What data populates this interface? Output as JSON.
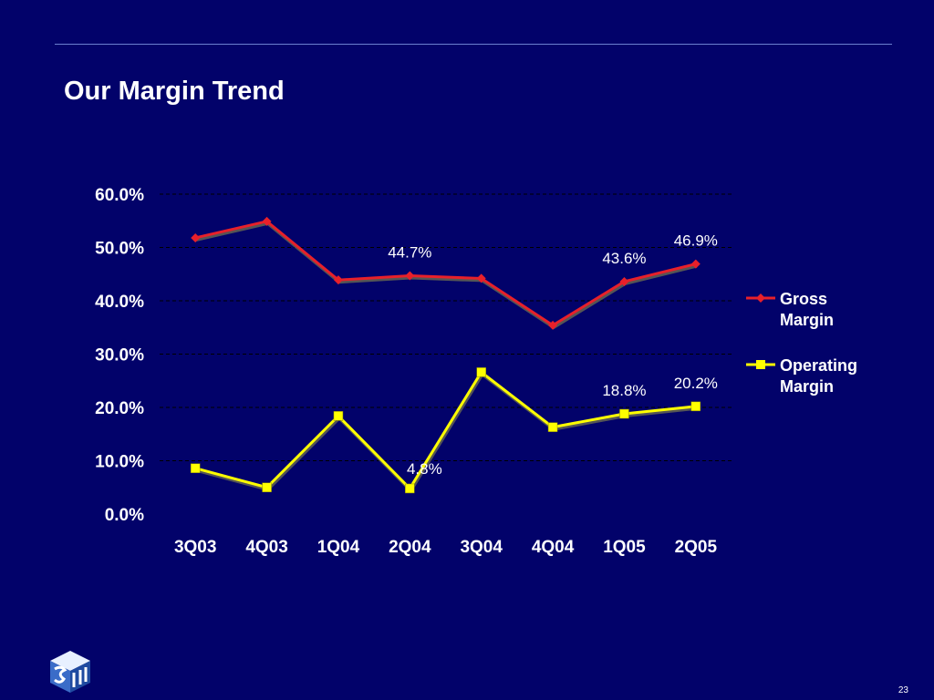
{
  "slide": {
    "title": "Our Margin Trend",
    "page_number": "23"
  },
  "colors": {
    "background": "#02026a",
    "gross_margin": "#e8202a",
    "operating_margin": "#ffff00",
    "gridline": "#000000",
    "text": "#ffffff"
  },
  "logo": {
    "icon": "cube-logo-icon"
  },
  "chart_data": {
    "type": "line",
    "categories": [
      "3Q03",
      "4Q03",
      "1Q04",
      "2Q04",
      "3Q04",
      "4Q04",
      "1Q05",
      "2Q05"
    ],
    "y_ticks": [
      "0.0%",
      "10.0%",
      "20.0%",
      "30.0%",
      "40.0%",
      "50.0%",
      "60.0%"
    ],
    "ylim": [
      0,
      60
    ],
    "grid": true,
    "legend_position": "right",
    "series": [
      {
        "name": "Gross Margin",
        "legend_line1": "Gross",
        "legend_line2": "Margin",
        "marker": "diamond",
        "values": [
          51.8,
          54.9,
          43.9,
          44.7,
          44.2,
          35.4,
          43.6,
          46.9
        ],
        "labels": [
          {
            "index": 3,
            "text": "44.7%"
          },
          {
            "index": 6,
            "text": "43.6%"
          },
          {
            "index": 7,
            "text": "46.9%"
          }
        ]
      },
      {
        "name": "Operating Margin",
        "legend_line1": "Operating",
        "legend_line2": "Margin",
        "marker": "square",
        "values": [
          8.6,
          5.0,
          18.4,
          4.8,
          26.6,
          16.3,
          18.8,
          20.2
        ],
        "labels": [
          {
            "index": 3,
            "text": "4.8%"
          },
          {
            "index": 6,
            "text": "18.8%"
          },
          {
            "index": 7,
            "text": "20.2%"
          }
        ]
      }
    ]
  }
}
